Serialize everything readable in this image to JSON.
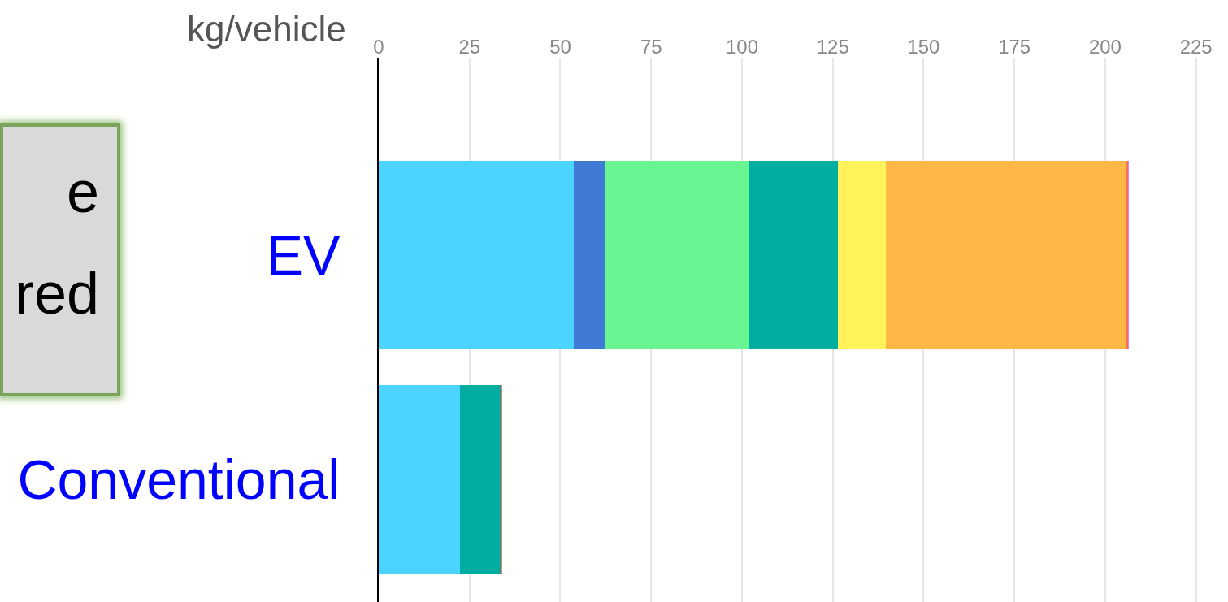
{
  "chart_data": {
    "type": "bar",
    "orientation": "horizontal",
    "stacked": true,
    "xlabel": "kg/vehicle",
    "categories": [
      "EV",
      "Conventional"
    ],
    "series": [
      {
        "color": "#4ad4ff",
        "values": [
          53.6,
          22.3
        ]
      },
      {
        "color": "#3f7bd4",
        "values": [
          8.7,
          null
        ]
      },
      {
        "color": "#68f592",
        "values": [
          39.5,
          null
        ]
      },
      {
        "color": "#00ada0",
        "values": [
          24.5,
          11.4
        ]
      },
      {
        "color": "#fff25a",
        "values": [
          13.2,
          null
        ]
      },
      {
        "color": "#ffb746",
        "values": [
          66.3,
          null
        ]
      },
      {
        "color": "#ff7050",
        "values": [
          0.4,
          0.4
        ]
      },
      {
        "color": "#c58cf5",
        "values": [
          0.4,
          null
        ]
      }
    ],
    "xlim": [
      0,
      233.8
    ],
    "xticks": [
      0,
      25,
      50,
      75,
      100,
      125,
      150,
      175,
      200,
      225
    ],
    "grid": "x",
    "annotations": [
      "e\nred"
    ]
  }
}
